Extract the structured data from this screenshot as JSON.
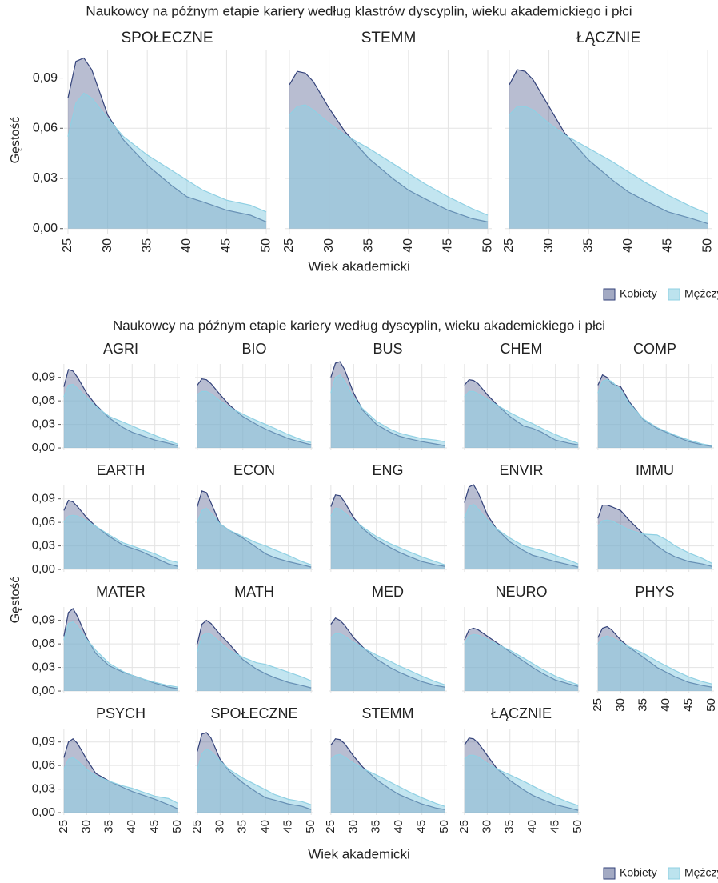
{
  "chart_data": [
    {
      "type": "area",
      "title": "Naukowcy na późnym etapie kariery według klastrów dyscyplin, wieku akademickiego i płci",
      "xlabel": "Wiek akademicki",
      "ylabel": "Gęstość",
      "x": [
        25,
        26,
        27,
        28,
        30,
        32,
        35,
        38,
        40,
        42,
        45,
        48,
        50
      ],
      "xlim": [
        24.5,
        50.5
      ],
      "ylim": [
        -0.003,
        0.107
      ],
      "xticks": [
        25,
        30,
        35,
        40,
        45,
        50
      ],
      "yticks": [
        {
          "value": 0,
          "label": "0,00"
        },
        {
          "value": 0.03,
          "label": "0,03"
        },
        {
          "value": 0.06,
          "label": "0,06"
        },
        {
          "value": 0.09,
          "label": "0,09"
        }
      ],
      "grid": true,
      "series": [
        {
          "name": "Kobiety",
          "color": "#33427a"
        },
        {
          "name": "Mężczyźni",
          "color": "#8fd0e3"
        }
      ],
      "panels": [
        {
          "title": "SPOŁECZNE",
          "values": [
            [
              0.078,
              0.1,
              0.102,
              0.095,
              0.068,
              0.053,
              0.038,
              0.026,
              0.019,
              0.016,
              0.011,
              0.008,
              0.004
            ],
            [
              0.055,
              0.075,
              0.081,
              0.078,
              0.066,
              0.055,
              0.044,
              0.035,
              0.029,
              0.023,
              0.017,
              0.014,
              0.01
            ]
          ]
        },
        {
          "title": "STEMM",
          "values": [
            [
              0.086,
              0.094,
              0.093,
              0.088,
              0.072,
              0.058,
              0.042,
              0.03,
              0.023,
              0.018,
              0.011,
              0.006,
              0.004
            ],
            [
              0.068,
              0.073,
              0.074,
              0.071,
              0.063,
              0.056,
              0.048,
              0.039,
              0.033,
              0.027,
              0.019,
              0.012,
              0.008
            ]
          ]
        },
        {
          "title": "ŁĄCZNIE",
          "values": [
            [
              0.086,
              0.095,
              0.094,
              0.089,
              0.073,
              0.057,
              0.041,
              0.029,
              0.022,
              0.017,
              0.01,
              0.006,
              0.003
            ],
            [
              0.068,
              0.073,
              0.073,
              0.071,
              0.063,
              0.056,
              0.048,
              0.04,
              0.034,
              0.028,
              0.02,
              0.013,
              0.009
            ]
          ]
        }
      ]
    },
    {
      "type": "area",
      "title": "Naukowcy na późnym etapie kariery według dyscyplin, wieku akademickiego i płci",
      "xlabel": "Wiek akademicki",
      "ylabel": "Gęstość",
      "x": [
        25,
        26,
        27,
        28,
        30,
        32,
        35,
        38,
        40,
        42,
        45,
        48,
        50
      ],
      "xlim": [
        24.5,
        50.5
      ],
      "ylim": [
        -0.003,
        0.107
      ],
      "xticks": [
        25,
        30,
        35,
        40,
        45,
        50
      ],
      "yticks": [
        {
          "value": 0,
          "label": "0,00"
        },
        {
          "value": 0.03,
          "label": "0,03"
        },
        {
          "value": 0.06,
          "label": "0,06"
        },
        {
          "value": 0.09,
          "label": "0,09"
        }
      ],
      "grid": true,
      "series": [
        {
          "name": "Kobiety",
          "color": "#33427a"
        },
        {
          "name": "Mężczyźni",
          "color": "#8fd0e3"
        }
      ],
      "panels": [
        {
          "title": "AGRI",
          "values": [
            [
              0.078,
              0.1,
              0.098,
              0.09,
              0.07,
              0.055,
              0.038,
              0.026,
              0.02,
              0.016,
              0.01,
              0.006,
              0.003
            ],
            [
              0.065,
              0.08,
              0.081,
              0.076,
              0.064,
              0.053,
              0.04,
              0.033,
              0.028,
              0.023,
              0.016,
              0.009,
              0.005
            ]
          ]
        },
        {
          "title": "BIO",
          "values": [
            [
              0.08,
              0.088,
              0.087,
              0.082,
              0.068,
              0.055,
              0.04,
              0.03,
              0.024,
              0.019,
              0.012,
              0.007,
              0.004
            ],
            [
              0.068,
              0.072,
              0.072,
              0.069,
              0.06,
              0.052,
              0.043,
              0.035,
              0.03,
              0.025,
              0.017,
              0.01,
              0.007
            ]
          ]
        },
        {
          "title": "BUS",
          "values": [
            [
              0.09,
              0.108,
              0.11,
              0.1,
              0.07,
              0.048,
              0.03,
              0.02,
              0.015,
              0.012,
              0.008,
              0.005,
              0.003
            ],
            [
              0.07,
              0.09,
              0.093,
              0.085,
              0.064,
              0.05,
              0.034,
              0.024,
              0.019,
              0.016,
              0.012,
              0.01,
              0.008
            ]
          ]
        },
        {
          "title": "CHEM",
          "values": [
            [
              0.08,
              0.087,
              0.086,
              0.082,
              0.068,
              0.056,
              0.04,
              0.028,
              0.025,
              0.02,
              0.01,
              0.006,
              0.004
            ],
            [
              0.065,
              0.072,
              0.072,
              0.069,
              0.062,
              0.055,
              0.045,
              0.036,
              0.031,
              0.025,
              0.017,
              0.01,
              0.006
            ]
          ]
        },
        {
          "title": "COMP",
          "values": [
            [
              0.08,
              0.093,
              0.09,
              0.082,
              0.078,
              0.058,
              0.036,
              0.025,
              0.02,
              0.015,
              0.008,
              0.004,
              0.002
            ],
            [
              0.07,
              0.085,
              0.087,
              0.085,
              0.074,
              0.056,
              0.037,
              0.026,
              0.021,
              0.016,
              0.01,
              0.005,
              0.003
            ]
          ]
        },
        {
          "title": "EARTH",
          "values": [
            [
              0.075,
              0.088,
              0.086,
              0.08,
              0.066,
              0.055,
              0.042,
              0.031,
              0.027,
              0.023,
              0.015,
              0.007,
              0.004
            ],
            [
              0.06,
              0.068,
              0.069,
              0.068,
              0.062,
              0.055,
              0.044,
              0.034,
              0.03,
              0.026,
              0.02,
              0.012,
              0.009
            ]
          ]
        },
        {
          "title": "ECON",
          "values": [
            [
              0.08,
              0.1,
              0.098,
              0.085,
              0.058,
              0.05,
              0.04,
              0.028,
              0.02,
              0.015,
              0.01,
              0.006,
              0.003
            ],
            [
              0.06,
              0.075,
              0.078,
              0.072,
              0.058,
              0.05,
              0.042,
              0.034,
              0.03,
              0.025,
              0.018,
              0.01,
              0.006
            ]
          ]
        },
        {
          "title": "ENG",
          "values": [
            [
              0.08,
              0.095,
              0.094,
              0.086,
              0.066,
              0.052,
              0.038,
              0.028,
              0.022,
              0.017,
              0.01,
              0.006,
              0.004
            ],
            [
              0.068,
              0.078,
              0.077,
              0.072,
              0.063,
              0.054,
              0.042,
              0.033,
              0.028,
              0.023,
              0.016,
              0.01,
              0.006
            ]
          ]
        },
        {
          "title": "ENVIR",
          "values": [
            [
              0.085,
              0.105,
              0.108,
              0.098,
              0.07,
              0.052,
              0.035,
              0.024,
              0.018,
              0.015,
              0.01,
              0.006,
              0.003
            ],
            [
              0.065,
              0.08,
              0.083,
              0.077,
              0.063,
              0.052,
              0.04,
              0.03,
              0.027,
              0.024,
              0.018,
              0.012,
              0.007
            ]
          ]
        },
        {
          "title": "IMMU",
          "values": [
            [
              0.065,
              0.082,
              0.082,
              0.08,
              0.075,
              0.062,
              0.045,
              0.03,
              0.022,
              0.016,
              0.01,
              0.007,
              0.004
            ],
            [
              0.055,
              0.062,
              0.063,
              0.062,
              0.056,
              0.05,
              0.045,
              0.044,
              0.038,
              0.03,
              0.021,
              0.014,
              0.008
            ]
          ]
        },
        {
          "title": "MATER",
          "values": [
            [
              0.07,
              0.1,
              0.105,
              0.095,
              0.068,
              0.048,
              0.032,
              0.024,
              0.02,
              0.016,
              0.01,
              0.005,
              0.003
            ],
            [
              0.065,
              0.086,
              0.088,
              0.082,
              0.066,
              0.052,
              0.035,
              0.025,
              0.02,
              0.016,
              0.011,
              0.007,
              0.005
            ]
          ]
        },
        {
          "title": "MATH",
          "values": [
            [
              0.06,
              0.085,
              0.09,
              0.086,
              0.072,
              0.06,
              0.04,
              0.028,
              0.022,
              0.017,
              0.011,
              0.007,
              0.004
            ],
            [
              0.05,
              0.07,
              0.074,
              0.072,
              0.062,
              0.052,
              0.043,
              0.036,
              0.034,
              0.03,
              0.024,
              0.018,
              0.013
            ]
          ]
        },
        {
          "title": "MED",
          "values": [
            [
              0.085,
              0.093,
              0.09,
              0.084,
              0.068,
              0.056,
              0.041,
              0.03,
              0.024,
              0.019,
              0.012,
              0.007,
              0.005
            ],
            [
              0.068,
              0.073,
              0.073,
              0.07,
              0.062,
              0.055,
              0.046,
              0.038,
              0.032,
              0.027,
              0.019,
              0.012,
              0.008
            ]
          ]
        },
        {
          "title": "NEURO",
          "values": [
            [
              0.065,
              0.078,
              0.08,
              0.078,
              0.07,
              0.062,
              0.05,
              0.038,
              0.03,
              0.023,
              0.014,
              0.009,
              0.006
            ],
            [
              0.06,
              0.07,
              0.072,
              0.071,
              0.066,
              0.06,
              0.052,
              0.042,
              0.035,
              0.028,
              0.019,
              0.012,
              0.008
            ]
          ]
        },
        {
          "title": "PHYS",
          "values": [
            [
              0.068,
              0.08,
              0.082,
              0.078,
              0.065,
              0.055,
              0.043,
              0.03,
              0.024,
              0.018,
              0.011,
              0.007,
              0.005
            ],
            [
              0.06,
              0.068,
              0.07,
              0.068,
              0.062,
              0.056,
              0.048,
              0.038,
              0.032,
              0.026,
              0.018,
              0.012,
              0.009
            ]
          ]
        },
        {
          "title": "PSYCH",
          "values": [
            [
              0.07,
              0.09,
              0.094,
              0.088,
              0.068,
              0.05,
              0.04,
              0.032,
              0.027,
              0.023,
              0.017,
              0.01,
              0.005
            ],
            [
              0.055,
              0.068,
              0.07,
              0.066,
              0.055,
              0.047,
              0.04,
              0.034,
              0.031,
              0.027,
              0.021,
              0.018,
              0.012
            ]
          ]
        },
        {
          "title": "SPOŁECZNE",
          "values": [
            [
              0.078,
              0.1,
              0.102,
              0.095,
              0.068,
              0.053,
              0.038,
              0.026,
              0.019,
              0.016,
              0.011,
              0.008,
              0.004
            ],
            [
              0.055,
              0.075,
              0.081,
              0.078,
              0.066,
              0.055,
              0.044,
              0.035,
              0.029,
              0.023,
              0.017,
              0.014,
              0.01
            ]
          ]
        },
        {
          "title": "STEMM",
          "values": [
            [
              0.086,
              0.094,
              0.093,
              0.088,
              0.072,
              0.058,
              0.042,
              0.03,
              0.023,
              0.018,
              0.011,
              0.006,
              0.004
            ],
            [
              0.068,
              0.073,
              0.074,
              0.071,
              0.063,
              0.056,
              0.048,
              0.039,
              0.033,
              0.027,
              0.019,
              0.012,
              0.008
            ]
          ]
        },
        {
          "title": "ŁĄCZNIE",
          "values": [
            [
              0.086,
              0.095,
              0.094,
              0.089,
              0.073,
              0.057,
              0.041,
              0.029,
              0.022,
              0.017,
              0.01,
              0.006,
              0.003
            ],
            [
              0.068,
              0.073,
              0.073,
              0.071,
              0.063,
              0.056,
              0.048,
              0.04,
              0.034,
              0.028,
              0.02,
              0.013,
              0.009
            ]
          ]
        }
      ]
    }
  ]
}
